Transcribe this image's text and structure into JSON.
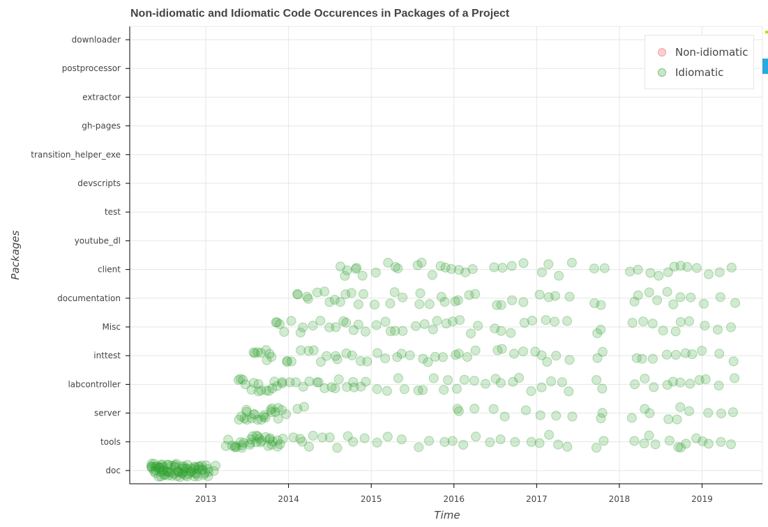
{
  "chart_data": {
    "type": "scatter",
    "title": "Non-idiomatic and Idiomatic Code Occurences in Packages of a Project",
    "xlabel": "Time",
    "ylabel": "Packages",
    "categories": [
      "doc",
      "tools",
      "server",
      "labcontroller",
      "inttest",
      "Misc",
      "documentation",
      "client",
      "youtube_dl",
      "test",
      "devscripts",
      "transition_helper_exe",
      "gh-pages",
      "extractor",
      "postprocessor",
      "downloader"
    ],
    "xlim": [
      2012.08,
      2019.73
    ],
    "x_ticks": [
      2013,
      2014,
      2015,
      2016,
      2017,
      2018,
      2019
    ],
    "x_tick_labels": [
      "2013",
      "2014",
      "2015",
      "2016",
      "2017",
      "2018",
      "2019"
    ],
    "grid": true,
    "legend_position": "top-right",
    "legend": [
      {
        "label": "Non-idiomatic",
        "color": "#f4a0a6"
      },
      {
        "label": "Idiomatic",
        "color": "#2ca02c"
      }
    ],
    "series": [
      {
        "name": "Idiomatic",
        "color": "#2ca02c",
        "points": [
          {
            "category": "doc",
            "dates": [
              2012.35,
              2012.36,
              2012.38,
              2012.39,
              2012.4,
              2012.42,
              2012.44,
              2012.45,
              2012.47,
              2012.48,
              2012.5,
              2012.52,
              2012.53,
              2012.55,
              2012.57,
              2012.58,
              2012.6,
              2012.62,
              2012.64,
              2012.66,
              2012.68,
              2012.7,
              2012.72,
              2012.74,
              2012.76,
              2012.78,
              2012.8,
              2012.82,
              2012.84,
              2012.86,
              2012.88,
              2012.9,
              2012.92,
              2012.94,
              2012.96,
              2012.98,
              2013.0,
              2013.04,
              2013.1
            ]
          },
          {
            "category": "tools",
            "dates": [
              2013.27,
              2013.32,
              2013.38,
              2013.42,
              2013.47,
              2013.52,
              2013.56,
              2013.6,
              2013.64,
              2013.68,
              2013.72,
              2013.76,
              2013.8,
              2013.85,
              2013.92,
              2014.05,
              2014.12,
              2014.18,
              2014.24,
              2014.32,
              2014.42,
              2014.53,
              2014.62,
              2014.7,
              2014.8,
              2014.9,
              2015.05,
              2015.2,
              2015.35,
              2015.55,
              2015.72,
              2015.9,
              2016.0,
              2016.1,
              2016.25,
              2016.45,
              2016.58,
              2016.75,
              2016.95,
              2017.05,
              2017.15,
              2017.25,
              2017.4,
              2017.72,
              2017.8,
              2018.15,
              2018.28,
              2018.35,
              2018.45,
              2018.6,
              2018.68,
              2018.75,
              2018.82,
              2018.9,
              2019.0,
              2019.1,
              2019.2,
              2019.37
            ]
          },
          {
            "category": "server",
            "dates": [
              2013.42,
              2013.46,
              2013.52,
              2013.58,
              2013.62,
              2013.68,
              2013.72,
              2013.78,
              2013.82,
              2013.88,
              2013.95,
              2014.12,
              2014.16,
              2016.02,
              2016.08,
              2016.25,
              2016.5,
              2016.62,
              2016.85,
              2017.05,
              2017.25,
              2017.45,
              2017.75,
              2017.82,
              2018.18,
              2018.28,
              2018.38,
              2018.58,
              2018.68,
              2018.76,
              2018.85,
              2019.05,
              2019.2,
              2019.37
            ]
          },
          {
            "category": "labcontroller",
            "dates": [
              2013.42,
              2013.48,
              2013.55,
              2013.62,
              2013.7,
              2013.78,
              2013.85,
              2013.92,
              2014.02,
              2014.1,
              2014.18,
              2014.25,
              2014.32,
              2014.38,
              2014.45,
              2014.52,
              2014.58,
              2014.64,
              2014.7,
              2014.76,
              2014.82,
              2014.88,
              2014.95,
              2015.05,
              2015.2,
              2015.3,
              2015.4,
              2015.55,
              2015.65,
              2015.75,
              2015.85,
              2015.95,
              2016.05,
              2016.15,
              2016.25,
              2016.35,
              2016.48,
              2016.58,
              2016.68,
              2016.8,
              2016.9,
              2017.05,
              2017.15,
              2017.28,
              2017.4,
              2017.7,
              2017.8,
              2018.2,
              2018.3,
              2018.4,
              2018.55,
              2018.65,
              2018.75,
              2018.85,
              2018.95,
              2019.05,
              2019.2,
              2019.37
            ]
          },
          {
            "category": "inttest",
            "dates": [
              2013.6,
              2013.66,
              2013.72,
              2013.78,
              2013.95,
              2014.05,
              2014.15,
              2014.22,
              2014.28,
              2014.4,
              2014.48,
              2014.55,
              2014.62,
              2014.7,
              2014.78,
              2014.85,
              2014.92,
              2015.05,
              2015.2,
              2015.28,
              2015.35,
              2015.5,
              2015.6,
              2015.7,
              2015.8,
              2015.9,
              2016.0,
              2016.05,
              2016.15,
              2016.25,
              2016.5,
              2016.6,
              2016.75,
              2016.85,
              2016.95,
              2017.05,
              2017.15,
              2017.25,
              2017.4,
              2017.72,
              2017.8,
              2018.18,
              2018.28,
              2018.38,
              2018.58,
              2018.68,
              2018.78,
              2018.9,
              2019.0,
              2019.2,
              2019.37
            ]
          },
          {
            "category": "Misc",
            "dates": [
              2013.85,
              2013.92,
              2014.05,
              2014.12,
              2014.2,
              2014.28,
              2014.4,
              2014.5,
              2014.58,
              2014.65,
              2014.72,
              2014.78,
              2014.85,
              2014.92,
              2015.05,
              2015.15,
              2015.25,
              2015.32,
              2015.4,
              2015.55,
              2015.62,
              2015.72,
              2015.82,
              2015.9,
              2016.0,
              2016.1,
              2016.2,
              2016.28,
              2016.5,
              2016.6,
              2016.7,
              2016.85,
              2016.95,
              2017.1,
              2017.2,
              2017.4,
              2017.7,
              2017.78,
              2018.18,
              2018.28,
              2018.38,
              2018.55,
              2018.65,
              2018.75,
              2018.85,
              2019.05,
              2019.2,
              2019.37
            ]
          },
          {
            "category": "documentation",
            "dates": [
              2014.08,
              2014.14,
              2014.2,
              2014.26,
              2014.32,
              2014.42,
              2014.5,
              2014.58,
              2014.65,
              2014.72,
              2014.78,
              2014.85,
              2014.92,
              2015.05,
              2015.2,
              2015.28,
              2015.35,
              2015.55,
              2015.62,
              2015.72,
              2015.82,
              2015.9,
              2016.0,
              2016.08,
              2016.18,
              2016.25,
              2016.5,
              2016.6,
              2016.72,
              2016.85,
              2017.05,
              2017.18,
              2017.25,
              2017.4,
              2017.72,
              2017.78,
              2018.15,
              2018.25,
              2018.35,
              2018.48,
              2018.6,
              2018.68,
              2018.75,
              2018.85,
              2019.05,
              2019.2,
              2019.37
            ]
          },
          {
            "category": "client",
            "dates": [
              2014.6,
              2014.65,
              2014.72,
              2014.78,
              2014.85,
              2014.92,
              2015.05,
              2015.2,
              2015.28,
              2015.35,
              2015.55,
              2015.62,
              2015.72,
              2015.82,
              2015.9,
              2016.0,
              2016.08,
              2016.15,
              2016.25,
              2016.5,
              2016.6,
              2016.7,
              2016.85,
              2017.05,
              2017.15,
              2017.25,
              2017.4,
              2017.72,
              2017.8,
              2018.15,
              2018.25,
              2018.35,
              2018.45,
              2018.58,
              2018.68,
              2018.75,
              2018.85,
              2018.95,
              2019.05,
              2019.2,
              2019.37
            ]
          }
        ]
      }
    ]
  }
}
